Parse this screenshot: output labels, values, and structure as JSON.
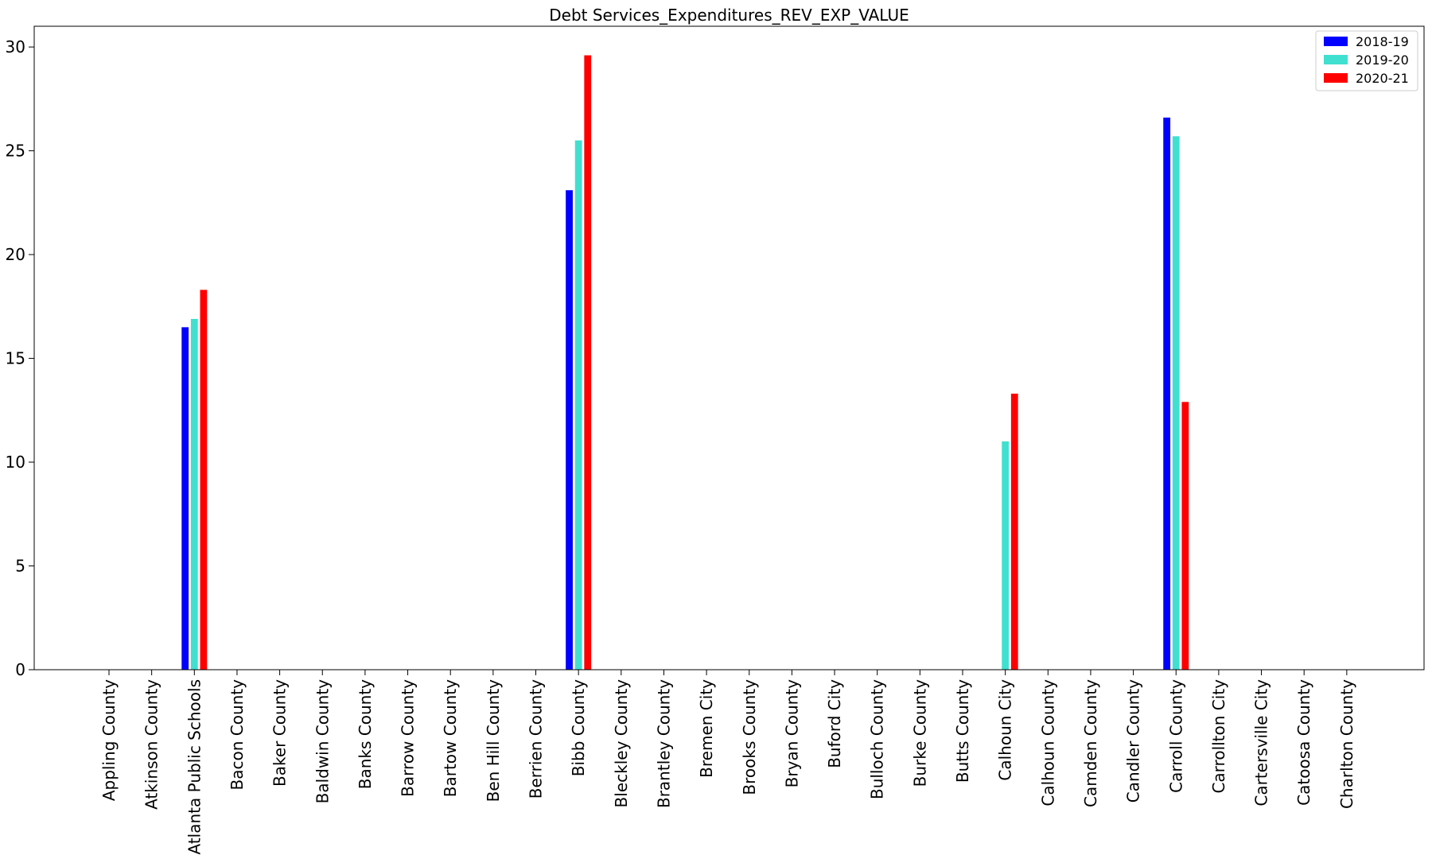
{
  "chart_data": {
    "type": "bar",
    "title": "Debt Services_Expenditures_REV_EXP_VALUE",
    "xlabel": "",
    "ylabel": "",
    "ylim": [
      0,
      31
    ],
    "yticks": [
      0,
      5,
      10,
      15,
      20,
      25,
      30
    ],
    "grid": false,
    "legend_position": "top-right",
    "categories": [
      "Appling County",
      "Atkinson County",
      "Atlanta Public Schools",
      "Bacon County",
      "Baker County",
      "Baldwin County",
      "Banks County",
      "Barrow County",
      "Bartow County",
      "Ben Hill County",
      "Berrien County",
      "Bibb County",
      "Bleckley County",
      "Brantley County",
      "Bremen City",
      "Brooks County",
      "Bryan County",
      "Buford City",
      "Bulloch County",
      "Burke County",
      "Butts County",
      "Calhoun City",
      "Calhoun County",
      "Camden County",
      "Candler County",
      "Carroll County",
      "Carrollton City",
      "Cartersville City",
      "Catoosa County",
      "Charlton County"
    ],
    "series": [
      {
        "name": "2018-19",
        "color": "#0000ff",
        "values": [
          0,
          0,
          16.5,
          0,
          0,
          0,
          0,
          0,
          0,
          0,
          0,
          23.1,
          0,
          0,
          0,
          0,
          0,
          0,
          0,
          0,
          0,
          0,
          0,
          0,
          0,
          26.6,
          0,
          0,
          0,
          0
        ]
      },
      {
        "name": "2019-20",
        "color": "#40e0d0",
        "values": [
          0,
          0,
          16.9,
          0,
          0,
          0,
          0,
          0,
          0,
          0,
          0,
          25.5,
          0,
          0,
          0,
          0,
          0,
          0,
          0,
          0,
          0,
          11.0,
          0,
          0,
          0,
          25.7,
          0,
          0,
          0,
          0
        ]
      },
      {
        "name": "2020-21",
        "color": "#ff0000",
        "values": [
          0,
          0,
          18.3,
          0,
          0,
          0,
          0,
          0,
          0,
          0,
          0,
          29.6,
          0,
          0,
          0,
          0,
          0,
          0,
          0,
          0,
          0,
          13.3,
          0,
          0,
          0,
          12.9,
          0,
          0,
          0,
          0
        ]
      }
    ]
  }
}
